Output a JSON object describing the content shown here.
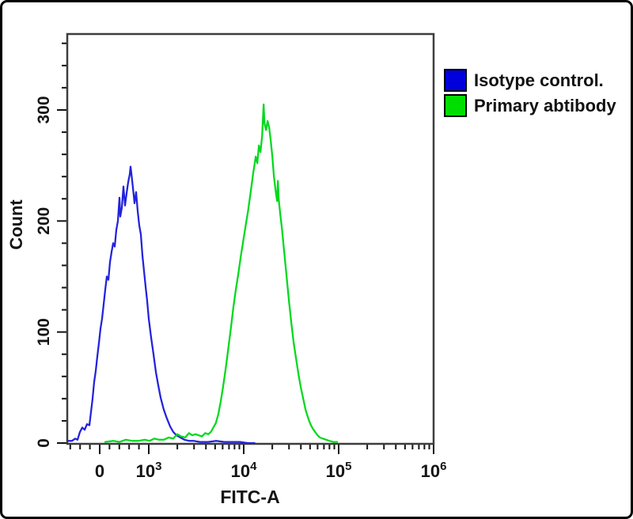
{
  "figure": {
    "background": "#ffffff",
    "frame_border_color": "#000000",
    "plot_border_color": "#3d3d3d",
    "tick_color": "#141414"
  },
  "legend": {
    "items": [
      {
        "label": "Isotype control.",
        "color": "#0000dd"
      },
      {
        "label": "Primary abtibody",
        "color": "#00dd00"
      }
    ]
  },
  "chart_data": {
    "type": "line",
    "title": "",
    "xlabel": "FITC-A",
    "ylabel": "Count",
    "x_scale": "logicle",
    "xlim_description": "biexponential axis from ~-660 to 1e6, linear through 0, logarithmic above 1e3",
    "ylim": [
      0,
      369
    ],
    "grid": false,
    "legend_position": "outside-top-right",
    "y_ticks": {
      "major": [
        0,
        100,
        200,
        300
      ],
      "minor_step": 20,
      "max": 360
    },
    "x_ticks": {
      "major": [
        {
          "v": 0,
          "label": "0"
        },
        {
          "v": 1000,
          "base": "10",
          "exp": "3"
        },
        {
          "v": 10000,
          "base": "10",
          "exp": "4"
        },
        {
          "v": 100000,
          "base": "10",
          "exp": "5"
        },
        {
          "v": 1000000,
          "base": "10",
          "exp": "6"
        }
      ],
      "minor_linear": [
        -600,
        -400,
        -200,
        200,
        400,
        600,
        800
      ],
      "minor_log_decades": [
        1000,
        10000,
        100000
      ]
    },
    "series": [
      {
        "name": "Isotype control.",
        "color": "#2222dd",
        "peak": {
          "x": 630,
          "count": 249
        },
        "points": [
          [
            -661,
            2
          ],
          [
            -565,
            2
          ],
          [
            -500,
            4
          ],
          [
            -452,
            3
          ],
          [
            -403,
            10
          ],
          [
            -355,
            14
          ],
          [
            -306,
            12
          ],
          [
            -258,
            17
          ],
          [
            -210,
            16
          ],
          [
            -177,
            28
          ],
          [
            -145,
            40
          ],
          [
            -113,
            55
          ],
          [
            -81,
            65
          ],
          [
            -48,
            78
          ],
          [
            -16,
            90
          ],
          [
            16,
            103
          ],
          [
            48,
            112
          ],
          [
            81,
            125
          ],
          [
            113,
            138
          ],
          [
            145,
            150
          ],
          [
            177,
            147
          ],
          [
            210,
            163
          ],
          [
            242,
            172
          ],
          [
            274,
            180
          ],
          [
            306,
            177
          ],
          [
            339,
            192
          ],
          [
            371,
            200
          ],
          [
            403,
            221
          ],
          [
            419,
            204
          ],
          [
            452,
            212
          ],
          [
            484,
            231
          ],
          [
            516,
            214
          ],
          [
            548,
            225
          ],
          [
            581,
            235
          ],
          [
            613,
            242
          ],
          [
            629,
            249
          ],
          [
            645,
            243
          ],
          [
            677,
            230
          ],
          [
            710,
            216
          ],
          [
            742,
            226
          ],
          [
            774,
            209
          ],
          [
            806,
            196
          ],
          [
            839,
            188
          ],
          [
            871,
            169
          ],
          [
            903,
            155
          ],
          [
            935,
            141
          ],
          [
            968,
            128
          ],
          [
            1000,
            112
          ],
          [
            1059,
            95
          ],
          [
            1122,
            80
          ],
          [
            1189,
            64
          ],
          [
            1259,
            52
          ],
          [
            1334,
            41
          ],
          [
            1441,
            30
          ],
          [
            1555,
            22
          ],
          [
            1679,
            15
          ],
          [
            1813,
            10
          ],
          [
            1957,
            7
          ],
          [
            2154,
            5
          ],
          [
            2371,
            3
          ],
          [
            2648,
            2
          ],
          [
            2958,
            2
          ],
          [
            3467,
            1
          ],
          [
            4217,
            1
          ],
          [
            5130,
            2
          ],
          [
            6240,
            1
          ],
          [
            7590,
            1
          ],
          [
            9100,
            1
          ],
          [
            11000,
            0
          ],
          [
            13000,
            0
          ]
        ]
      },
      {
        "name": "Primary abtibody",
        "color": "#00d91c",
        "peak": {
          "x": 16210,
          "count": 305
        },
        "points": [
          [
            113,
            1
          ],
          [
            274,
            2
          ],
          [
            403,
            1
          ],
          [
            532,
            3
          ],
          [
            661,
            2
          ],
          [
            790,
            2
          ],
          [
            919,
            3
          ],
          [
            1019,
            2
          ],
          [
            1144,
            4
          ],
          [
            1283,
            3
          ],
          [
            1440,
            3
          ],
          [
            1616,
            5
          ],
          [
            1813,
            4
          ],
          [
            1995,
            8
          ],
          [
            2195,
            6
          ],
          [
            2415,
            5
          ],
          [
            2657,
            9
          ],
          [
            2873,
            7
          ],
          [
            3106,
            8
          ],
          [
            3359,
            7
          ],
          [
            3631,
            6
          ],
          [
            3926,
            9
          ],
          [
            4245,
            8
          ],
          [
            4510,
            10
          ],
          [
            4790,
            14
          ],
          [
            5085,
            18
          ],
          [
            5405,
            26
          ],
          [
            5740,
            38
          ],
          [
            6100,
            52
          ],
          [
            6480,
            68
          ],
          [
            6880,
            85
          ],
          [
            7310,
            103
          ],
          [
            7770,
            122
          ],
          [
            8250,
            138
          ],
          [
            8760,
            152
          ],
          [
            9310,
            168
          ],
          [
            9890,
            182
          ],
          [
            10500,
            196
          ],
          [
            11160,
            210
          ],
          [
            11850,
            226
          ],
          [
            12590,
            243
          ],
          [
            13380,
            258
          ],
          [
            13900,
            252
          ],
          [
            14450,
            268
          ],
          [
            15010,
            262
          ],
          [
            15600,
            276
          ],
          [
            16210,
            305
          ],
          [
            16520,
            288
          ],
          [
            17170,
            282
          ],
          [
            17840,
            290
          ],
          [
            18540,
            284
          ],
          [
            19270,
            272
          ],
          [
            20020,
            258
          ],
          [
            20810,
            240
          ],
          [
            21620,
            228
          ],
          [
            22470,
            218
          ],
          [
            22900,
            236
          ],
          [
            23350,
            220
          ],
          [
            24260,
            206
          ],
          [
            25210,
            194
          ],
          [
            26710,
            172
          ],
          [
            28290,
            150
          ],
          [
            29970,
            128
          ],
          [
            31750,
            108
          ],
          [
            33640,
            90
          ],
          [
            35630,
            76
          ],
          [
            37750,
            62
          ],
          [
            39990,
            50
          ],
          [
            42360,
            40
          ],
          [
            44870,
            30
          ],
          [
            47540,
            23
          ],
          [
            50360,
            17
          ],
          [
            53350,
            13
          ],
          [
            56510,
            10
          ],
          [
            59870,
            7
          ],
          [
            63420,
            5
          ],
          [
            68450,
            4
          ],
          [
            73880,
            3
          ],
          [
            79740,
            2
          ],
          [
            87700,
            1
          ],
          [
            96450,
            1
          ]
        ]
      }
    ]
  }
}
